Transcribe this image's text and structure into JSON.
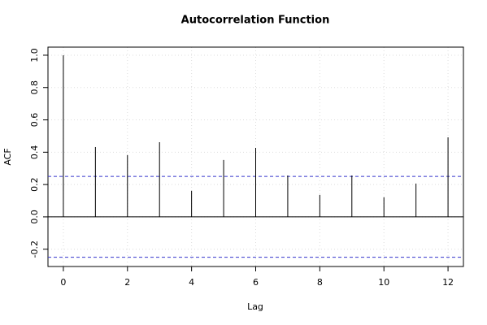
{
  "chart_data": {
    "type": "acf",
    "title": "Autocorrelation Function",
    "x_label": "Lag",
    "y_label": "ACF",
    "x": [
      0,
      1,
      2,
      3,
      4,
      5,
      6,
      7,
      8,
      9,
      10,
      11,
      12
    ],
    "values": [
      1.0,
      0.432,
      0.382,
      0.462,
      0.161,
      0.352,
      0.427,
      0.256,
      0.136,
      0.256,
      0.121,
      0.206,
      0.492
    ],
    "color": "#000000",
    "confidence_bounds": [
      0.25,
      -0.25
    ],
    "confidence_color": "#3333cc",
    "xlim": [
      -0.48,
      12.48
    ],
    "ylim": [
      -0.307,
      1.05
    ],
    "xticks": [
      0,
      2,
      4,
      6,
      8,
      10,
      12
    ],
    "yticks": [
      -0.2,
      {
        "value": 0,
        "label": "0.0"
      },
      0.2,
      0.4,
      0.6,
      0.8,
      {
        "value": 1,
        "label": "1.0"
      }
    ],
    "grid": true
  }
}
